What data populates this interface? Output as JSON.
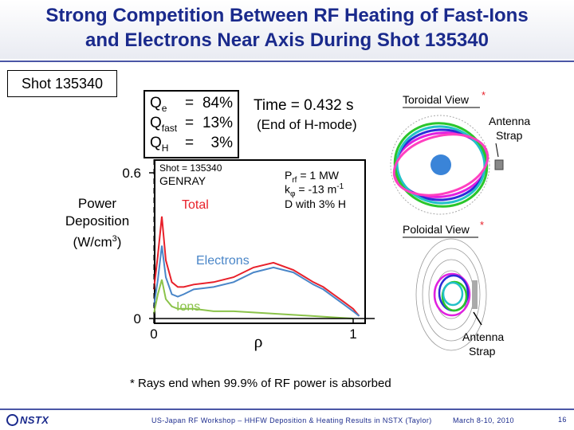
{
  "slide": {
    "title_line1": "Strong Competition Between RF Heating of Fast-Ions",
    "title_line2": "and Electrons Near Axis During Shot 135340",
    "shot_label": "Shot 135340",
    "footnote": "* Rays end when 99.9% of RF power is absorbed"
  },
  "power_fractions": [
    {
      "symbol": "Q",
      "sub": "e",
      "eq": "=",
      "value": "84%"
    },
    {
      "symbol": "Q",
      "sub": "fast",
      "eq": "=",
      "value": "13%"
    },
    {
      "symbol": "Q",
      "sub": "H",
      "eq": "=",
      "value": "3%"
    }
  ],
  "time": {
    "line1": "Time = 0.432 s",
    "line2": "(End of H-mode)"
  },
  "genray_box": {
    "shot": "Shot = 135340",
    "code": "GENRAY",
    "prf_label": "P",
    "prf_sub": "rf",
    "prf_value": " = 1 MW",
    "k_label": "k",
    "k_sub": "φ",
    "k_value": " = -13 m",
    "k_exp": "-1",
    "d_line": "D with 3% H"
  },
  "chart_data": {
    "type": "line",
    "ylabel_line1": "Power",
    "ylabel_line2": "Deposition",
    "ylabel_line3_prefix": "(W/cm",
    "ylabel_line3_exp": "3",
    "ylabel_line3_suffix": ")",
    "xlabel": "ρ",
    "x_ticks": [
      "0",
      "1"
    ],
    "y_ticks": [
      "0",
      "0.6"
    ],
    "xlim": [
      0,
      1.1
    ],
    "ylim": [
      0,
      0.6
    ],
    "grid": false,
    "series": [
      {
        "name": "Total",
        "color": "#e8202a",
        "x": [
          0,
          0.02,
          0.04,
          0.06,
          0.09,
          0.12,
          0.15,
          0.2,
          0.3,
          0.4,
          0.5,
          0.6,
          0.7,
          0.8,
          0.85,
          0.9,
          0.95,
          1.0,
          1.03
        ],
        "y": [
          0.12,
          0.26,
          0.42,
          0.24,
          0.15,
          0.13,
          0.13,
          0.14,
          0.15,
          0.17,
          0.21,
          0.23,
          0.2,
          0.15,
          0.13,
          0.1,
          0.07,
          0.04,
          0.01
        ]
      },
      {
        "name": "Electrons",
        "color": "#4a86c8",
        "x": [
          0,
          0.02,
          0.04,
          0.06,
          0.09,
          0.12,
          0.15,
          0.2,
          0.3,
          0.4,
          0.5,
          0.6,
          0.7,
          0.8,
          0.85,
          0.9,
          0.95,
          1.0,
          1.03
        ],
        "y": [
          0.05,
          0.16,
          0.3,
          0.17,
          0.1,
          0.09,
          0.1,
          0.12,
          0.13,
          0.15,
          0.19,
          0.21,
          0.19,
          0.14,
          0.12,
          0.09,
          0.06,
          0.03,
          0.01
        ]
      },
      {
        "name": "Ions",
        "color": "#8bc34a",
        "x": [
          0,
          0.02,
          0.04,
          0.06,
          0.09,
          0.12,
          0.15,
          0.2,
          0.3,
          0.4,
          0.5,
          0.6,
          0.7,
          0.8,
          0.9,
          1.0
        ],
        "y": [
          0.02,
          0.1,
          0.16,
          0.08,
          0.05,
          0.04,
          0.04,
          0.04,
          0.03,
          0.03,
          0.025,
          0.02,
          0.015,
          0.01,
          0.005,
          0.0
        ]
      }
    ]
  },
  "views": {
    "toroidal_title": "Toroidal View",
    "poloidal_title": "Poloidal View",
    "star": "*",
    "antenna_line1": "Antenna",
    "antenna_line2": "Strap"
  },
  "footer": {
    "logo": "NSTX",
    "center": "US-Japan RF Workshop – HHFW Deposition & Heating Results in NSTX (Taylor)",
    "date": "March 8-10, 2010",
    "page": "16"
  }
}
